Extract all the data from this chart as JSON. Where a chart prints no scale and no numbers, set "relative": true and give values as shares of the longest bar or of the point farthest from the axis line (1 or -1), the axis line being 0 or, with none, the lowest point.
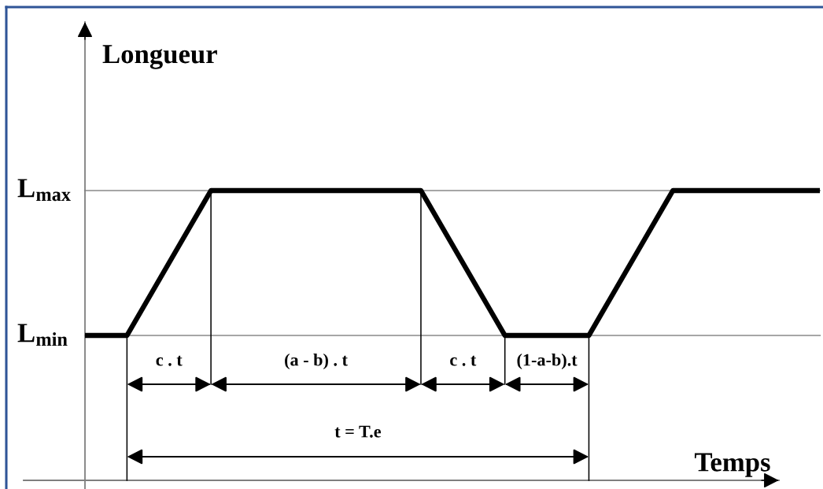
{
  "chart_data": {
    "type": "line",
    "relative": true,
    "ylabel": "Longueur",
    "xlabel": "Temps",
    "categories": [
      null,
      null,
      null,
      null,
      null,
      null,
      null,
      null,
      null,
      null,
      null,
      null,
      null,
      null,
      null,
      null,
      null,
      null,
      null,
      null,
      null,
      null,
      null,
      null,
      null,
      null,
      null,
      null,
      null,
      null,
      null,
      null,
      null,
      null,
      null,
      null
    ],
    "series": [
      {
        "color": "#000000",
        "values": [
          0.5,
          0.5,
          0.5,
          0.625,
          0.75,
          0.875,
          1,
          1,
          1,
          1,
          1,
          1,
          1,
          1,
          1,
          1,
          1,
          0.875,
          0.75,
          0.625,
          0.5,
          0.5,
          0.5,
          0.5,
          0.5,
          0.625,
          0.75,
          0.875,
          1,
          1,
          1,
          1,
          1,
          1,
          1,
          1
        ]
      }
    ],
    "ref_lines": [
      {
        "axis": "y",
        "value": 1,
        "label": "L$_{max}$",
        "color": "#a6a6a6"
      },
      {
        "axis": "y",
        "value": 0.5,
        "label": "L$_{min}$",
        "color": "#a6a6a6"
      }
    ],
    "annotations": [
      "c . t",
      "(a - b) . t",
      "c . t",
      "(1-a-b).t",
      "t = T.e"
    ]
  }
}
